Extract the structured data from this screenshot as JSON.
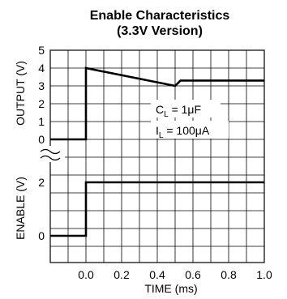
{
  "chart_data": {
    "type": "line",
    "title": "Enable Characteristics",
    "subtitle": "(3.3V Version)",
    "xlabel": "TIME (ms)",
    "xlim": [
      -0.2,
      1.0
    ],
    "x_ticks": [
      "0.0",
      "0.2",
      "0.4",
      "0.6",
      "0.8",
      "1.0"
    ],
    "x_tick_values": [
      0.0,
      0.2,
      0.4,
      0.6,
      0.8,
      1.0
    ],
    "grid": true,
    "panels": [
      {
        "ylabel": "OUTPUT (V)",
        "ylim": [
          0,
          5
        ],
        "y_ticks": [
          "0",
          "1",
          "2",
          "3",
          "4",
          "5"
        ],
        "y_tick_values": [
          0,
          1,
          2,
          3,
          4,
          5
        ],
        "series": [
          {
            "x": [
              -0.2,
              0.0,
              0.0,
              0.5,
              0.53,
              1.0
            ],
            "y": [
              0,
              0,
              4.0,
              3.0,
              3.3,
              3.3
            ]
          }
        ],
        "annotations": [
          {
            "main": "C",
            "sub": "L",
            "rest": " = 1μF"
          },
          {
            "main": "I",
            "sub": "L",
            "rest": " = 100μA"
          }
        ]
      },
      {
        "ylabel": "ENABLE (V)",
        "ylim": [
          -1,
          3
        ],
        "y_ticks": [
          "0",
          "2"
        ],
        "y_tick_values": [
          0,
          2
        ],
        "series": [
          {
            "x": [
              -0.2,
              0.0,
              0.0,
              1.0
            ],
            "y": [
              0,
              0,
              2,
              2
            ]
          }
        ]
      }
    ]
  }
}
